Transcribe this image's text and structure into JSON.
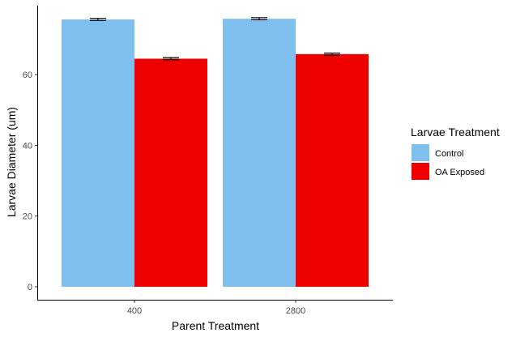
{
  "chart_data": {
    "type": "bar",
    "categories": [
      "400",
      "2800"
    ],
    "series": [
      {
        "name": "Control",
        "color": "#80c0ee",
        "values": [
          75.6,
          75.8
        ],
        "errors": [
          0.3,
          0.3
        ]
      },
      {
        "name": "OA Exposed",
        "color": "#ee0000",
        "values": [
          64.5,
          65.8
        ],
        "errors": [
          0.3,
          0.3
        ]
      }
    ],
    "xlabel": "Parent Treatment",
    "ylabel": "Larvae Diameter (um)",
    "ylim": [
      0,
      80
    ],
    "yticks": [
      0,
      20,
      40,
      60
    ],
    "legend": {
      "title": "Larvae Treatment",
      "placement": "right"
    },
    "grid": false
  }
}
